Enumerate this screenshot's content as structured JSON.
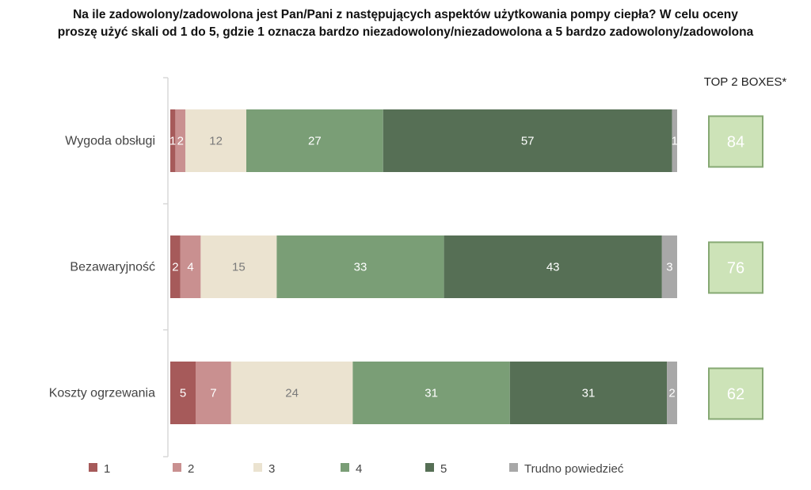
{
  "title_line1": "Na ile zadowolony/zadowolona jest Pan/Pani z następujących aspektów użytkowania pompy ciepła? W celu oceny",
  "title_line2": "proszę użyć skali od 1 do 5, gdzie 1 oznacza bardzo niezadowolony/niezadowolona a 5 bardzo zadowolony/zadowolona",
  "chart_data": {
    "type": "bar",
    "orientation": "horizontal",
    "stacked": true,
    "categories": [
      "Wygoda obsługi",
      "Bezawaryjność",
      "Koszty ogrzewania"
    ],
    "series": [
      {
        "name": "1",
        "values": [
          1,
          2,
          5
        ],
        "color": "#a65a5a",
        "label_color": "#ffffff"
      },
      {
        "name": "2",
        "values": [
          2,
          4,
          7
        ],
        "color": "#c99090",
        "label_color": "#ffffff"
      },
      {
        "name": "3",
        "values": [
          12,
          15,
          24
        ],
        "color": "#ebe3d0",
        "label_color": "#7a7a7a"
      },
      {
        "name": "4",
        "values": [
          27,
          33,
          31
        ],
        "color": "#7a9e76",
        "label_color": "#ffffff"
      },
      {
        "name": "5",
        "values": [
          57,
          43,
          31
        ],
        "color": "#566f55",
        "label_color": "#ffffff"
      },
      {
        "name": "Trudno powiedzieć",
        "values": [
          1,
          3,
          2
        ],
        "color": "#a8a8a8",
        "label_color": "#ffffff"
      }
    ],
    "top2_header": "TOP 2 BOXES*",
    "top2_values": [
      84,
      76,
      62
    ],
    "top2_fill": "#cde3b8",
    "top2_border": "#86a873",
    "legend_position": "bottom",
    "xlim": [
      0,
      100
    ]
  }
}
